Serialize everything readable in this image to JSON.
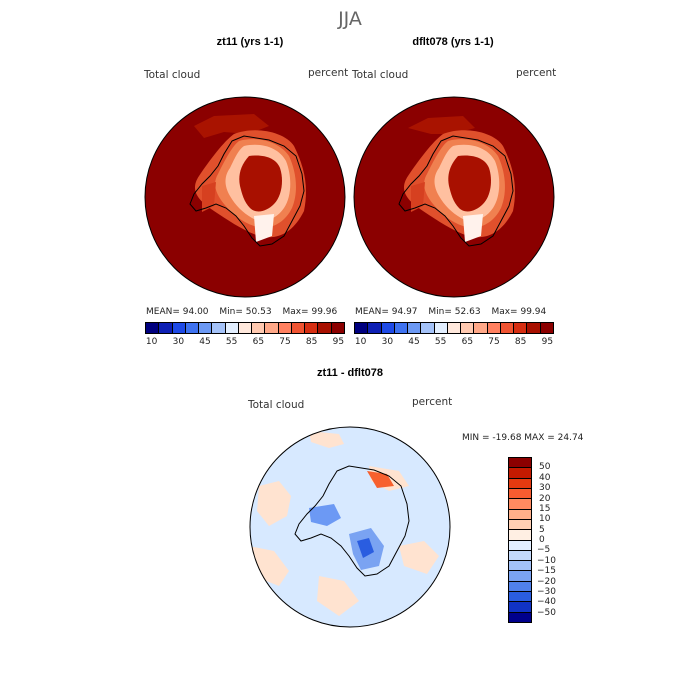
{
  "title": "JJA",
  "panels": [
    {
      "title": "zt11 (yrs 1-1)",
      "left_label": "Total cloud",
      "right_label": "percent",
      "mean_label": "MEAN=",
      "mean": "94.00",
      "min_label": "Min=",
      "min": "50.53",
      "max_label": "Max=",
      "max": "99.96"
    },
    {
      "title": "dflt078 (yrs 1-1)",
      "left_label": "Total cloud",
      "right_label": "percent",
      "mean_label": "MEAN=",
      "mean": "94.97",
      "min_label": "Min=",
      "min": "52.63",
      "max_label": "Max=",
      "max": "99.94"
    }
  ],
  "abs_colorbar": {
    "colors": [
      "#00007f",
      "#0d1fb4",
      "#1e4ae6",
      "#3e72f0",
      "#6c99f4",
      "#a4c2f8",
      "#e3efff",
      "#ffe8dc",
      "#ffc9b0",
      "#ffa888",
      "#ff8060",
      "#f05432",
      "#d62e12",
      "#a81000",
      "#8b0000"
    ],
    "ticks": [
      "10",
      "30",
      "45",
      "55",
      "65",
      "75",
      "85",
      "95"
    ]
  },
  "diff_panel": {
    "title": "zt11 - dflt078",
    "left_label": "Total cloud",
    "right_label": "percent",
    "minmax": "MIN = -19.68 MAX =  24.74"
  },
  "diff_colorbar": {
    "colors": [
      "#8b0000",
      "#c41a00",
      "#e43a10",
      "#f75c30",
      "#ff8a60",
      "#ffb08a",
      "#ffcfb3",
      "#ffefe3",
      "#e3efff",
      "#c4dafb",
      "#a2c1f7",
      "#7aa3f2",
      "#5081eb",
      "#2a5de0",
      "#1133c4",
      "#00008b"
    ],
    "ticks": [
      "50",
      "40",
      "30",
      "20",
      "15",
      "10",
      "5",
      "0",
      "−5",
      "−10",
      "−15",
      "−20",
      "−30",
      "−40",
      "−50"
    ]
  },
  "map_colors": {
    "ocean_abs": "#8b0000",
    "ocean_diff": "#d7e9ff",
    "coast": "#000000"
  }
}
